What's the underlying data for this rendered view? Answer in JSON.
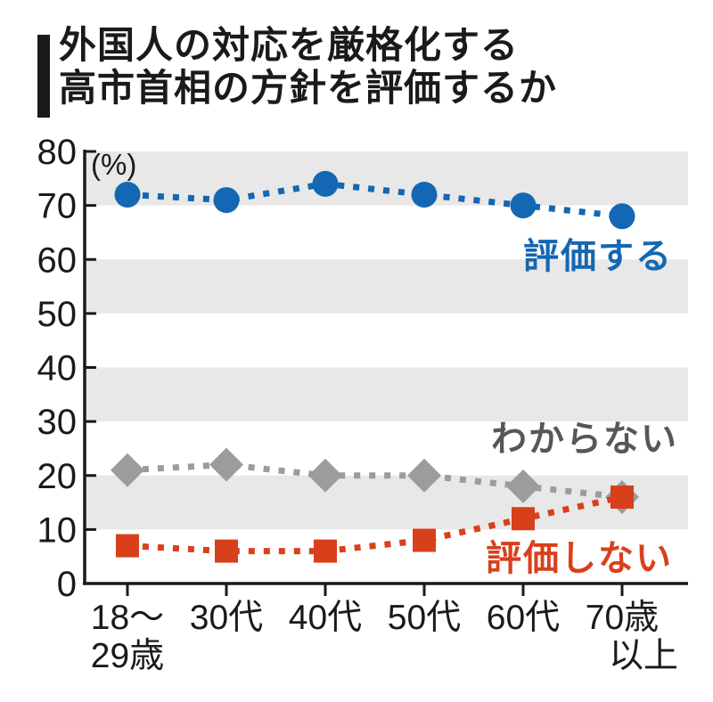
{
  "header": {
    "title_line1": "外国人の対応を厳格化する",
    "title_line2": "高市首相の方針を評価するか"
  },
  "chart_data": {
    "type": "line",
    "title": "外国人の対応を厳格化する高市首相の方針を評価するか",
    "unit_label": "(%)",
    "categories": [
      "18〜\n29歳",
      "30代",
      "40代",
      "50代",
      "60代",
      "70歳\n以上"
    ],
    "series": [
      {
        "name": "評価する",
        "marker": "circle",
        "color": "#1467b2",
        "label_color": "#1467b2",
        "values": [
          72,
          71,
          74,
          72,
          70,
          68
        ]
      },
      {
        "name": "わからない",
        "marker": "diamond",
        "color": "#9c9c9c",
        "label_color": "#575757",
        "values": [
          21,
          22,
          20,
          20,
          18,
          16
        ]
      },
      {
        "name": "評価しない",
        "marker": "square",
        "color": "#d8401b",
        "label_color": "#d8401b",
        "values": [
          7,
          6,
          6,
          8,
          12,
          16
        ]
      }
    ],
    "y_ticks": [
      0,
      10,
      20,
      30,
      40,
      50,
      60,
      70,
      80
    ],
    "ylim": [
      0,
      80
    ],
    "grid": "alternating-horizontal-bands",
    "band_pairs": [
      [
        10,
        20
      ],
      [
        30,
        40
      ],
      [
        50,
        60
      ],
      [
        70,
        80
      ]
    ],
    "band_color": "#e8e8e8",
    "axis_color": "#1a1a1a",
    "line_style": "dotted",
    "legend_position": "inline-labels-right"
  }
}
